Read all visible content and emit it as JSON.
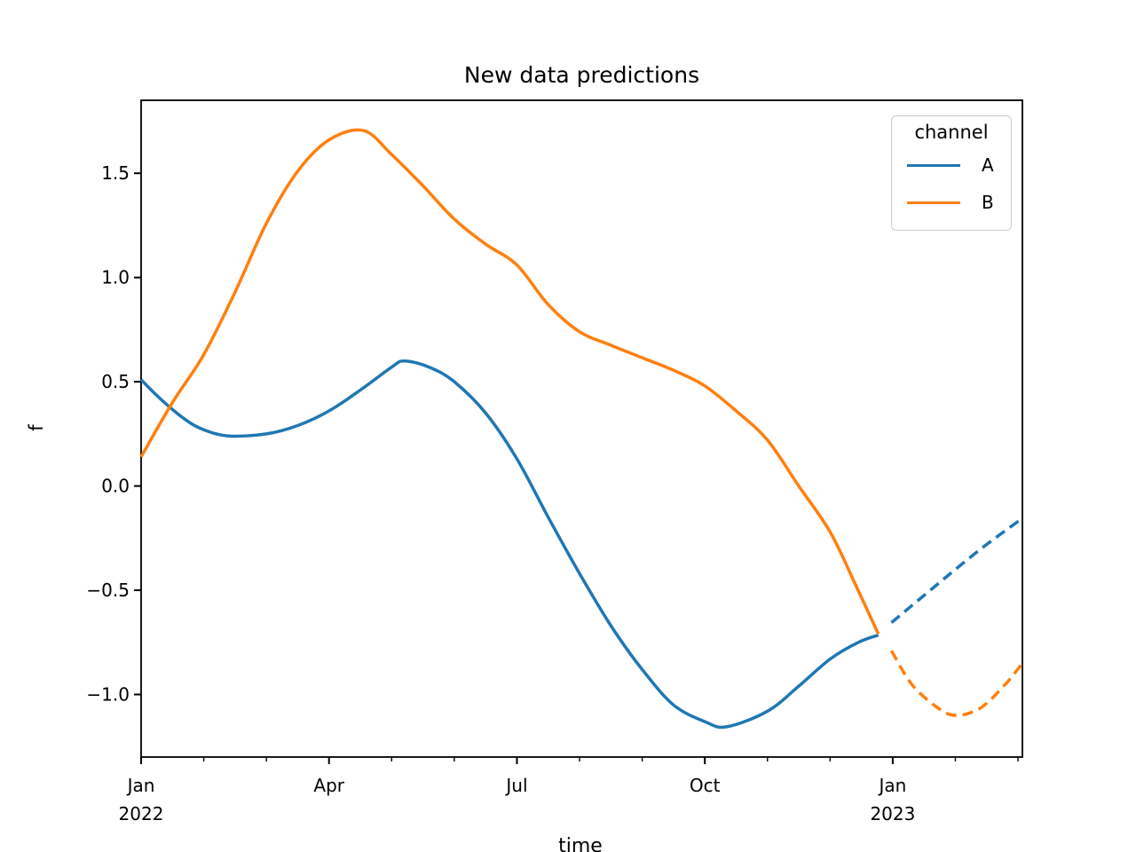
{
  "chart_data": {
    "type": "line",
    "title": "New data predictions",
    "xlabel": "time",
    "ylabel": "f",
    "legend_title": "channel",
    "legend_position": "upper right",
    "grid": false,
    "x_axis_unit": "months from Jan 2022",
    "xlim": [
      0,
      14.07
    ],
    "ylim": [
      -1.3,
      1.85
    ],
    "x_major_ticks": [
      {
        "t": 0,
        "line1": "Jan",
        "line2": "2022"
      },
      {
        "t": 3,
        "line1": "Apr",
        "line2": ""
      },
      {
        "t": 6,
        "line1": "Jul",
        "line2": ""
      },
      {
        "t": 9,
        "line1": "Oct",
        "line2": ""
      },
      {
        "t": 12,
        "line1": "Jan",
        "line2": "2023"
      }
    ],
    "x_minor_ticks": [
      1,
      2,
      4,
      5,
      7,
      8,
      10,
      11,
      13,
      14
    ],
    "y_ticks": [
      {
        "v": 1.5,
        "label": "1.5"
      },
      {
        "v": 1.0,
        "label": "1.0"
      },
      {
        "v": 0.5,
        "label": "0.5"
      },
      {
        "v": 0.0,
        "label": "0.0"
      },
      {
        "v": -0.5,
        "label": "−0.5"
      },
      {
        "v": -1.0,
        "label": "−1.0"
      }
    ],
    "colors": {
      "A": "#1f77b4",
      "B": "#ff7f0e",
      "axes": "#000000",
      "legend_border": "#cccccc"
    },
    "legend": [
      {
        "label": "A",
        "color": "#1f77b4"
      },
      {
        "label": "B",
        "color": "#ff7f0e"
      }
    ],
    "series": [
      {
        "name": "A",
        "color": "#1f77b4",
        "style": "solid",
        "points": [
          [
            0,
            0.51
          ],
          [
            0.3,
            0.42
          ],
          [
            0.7,
            0.32
          ],
          [
            1,
            0.27
          ],
          [
            1.4,
            0.24
          ],
          [
            2,
            0.25
          ],
          [
            2.5,
            0.29
          ],
          [
            3,
            0.36
          ],
          [
            3.5,
            0.46
          ],
          [
            4,
            0.57
          ],
          [
            4.2,
            0.6
          ],
          [
            4.6,
            0.57
          ],
          [
            5,
            0.5
          ],
          [
            5.5,
            0.35
          ],
          [
            6,
            0.13
          ],
          [
            6.5,
            -0.15
          ],
          [
            7,
            -0.42
          ],
          [
            7.5,
            -0.67
          ],
          [
            8,
            -0.88
          ],
          [
            8.5,
            -1.05
          ],
          [
            9,
            -1.13
          ],
          [
            9.35,
            -1.155
          ],
          [
            10,
            -1.08
          ],
          [
            10.5,
            -0.96
          ],
          [
            11,
            -0.83
          ],
          [
            11.45,
            -0.75
          ],
          [
            11.77,
            -0.715
          ]
        ]
      },
      {
        "name": "A_dashed",
        "color": "#1f77b4",
        "style": "dashed",
        "points": [
          [
            11.98,
            -0.655
          ],
          [
            12.5,
            -0.525
          ],
          [
            13,
            -0.4
          ],
          [
            13.5,
            -0.28
          ],
          [
            14.07,
            -0.155
          ]
        ]
      },
      {
        "name": "B",
        "color": "#ff7f0e",
        "style": "solid",
        "points": [
          [
            0,
            0.14
          ],
          [
            0.5,
            0.4
          ],
          [
            1,
            0.63
          ],
          [
            1.5,
            0.93
          ],
          [
            2,
            1.26
          ],
          [
            2.5,
            1.51
          ],
          [
            3,
            1.66
          ],
          [
            3.55,
            1.705
          ],
          [
            4,
            1.59
          ],
          [
            4.5,
            1.44
          ],
          [
            5,
            1.28
          ],
          [
            5.5,
            1.16
          ],
          [
            6,
            1.06
          ],
          [
            6.5,
            0.87
          ],
          [
            7,
            0.74
          ],
          [
            7.5,
            0.675
          ],
          [
            8,
            0.615
          ],
          [
            8.5,
            0.555
          ],
          [
            9,
            0.48
          ],
          [
            9.5,
            0.36
          ],
          [
            10,
            0.22
          ],
          [
            10.5,
            0.0
          ],
          [
            11,
            -0.22
          ],
          [
            11.4,
            -0.47
          ],
          [
            11.77,
            -0.71
          ]
        ]
      },
      {
        "name": "B_dashed",
        "color": "#ff7f0e",
        "style": "dashed",
        "points": [
          [
            11.98,
            -0.79
          ],
          [
            12.3,
            -0.95
          ],
          [
            12.7,
            -1.06
          ],
          [
            13,
            -1.1
          ],
          [
            13.4,
            -1.065
          ],
          [
            13.8,
            -0.95
          ],
          [
            14.07,
            -0.85
          ]
        ]
      }
    ]
  }
}
